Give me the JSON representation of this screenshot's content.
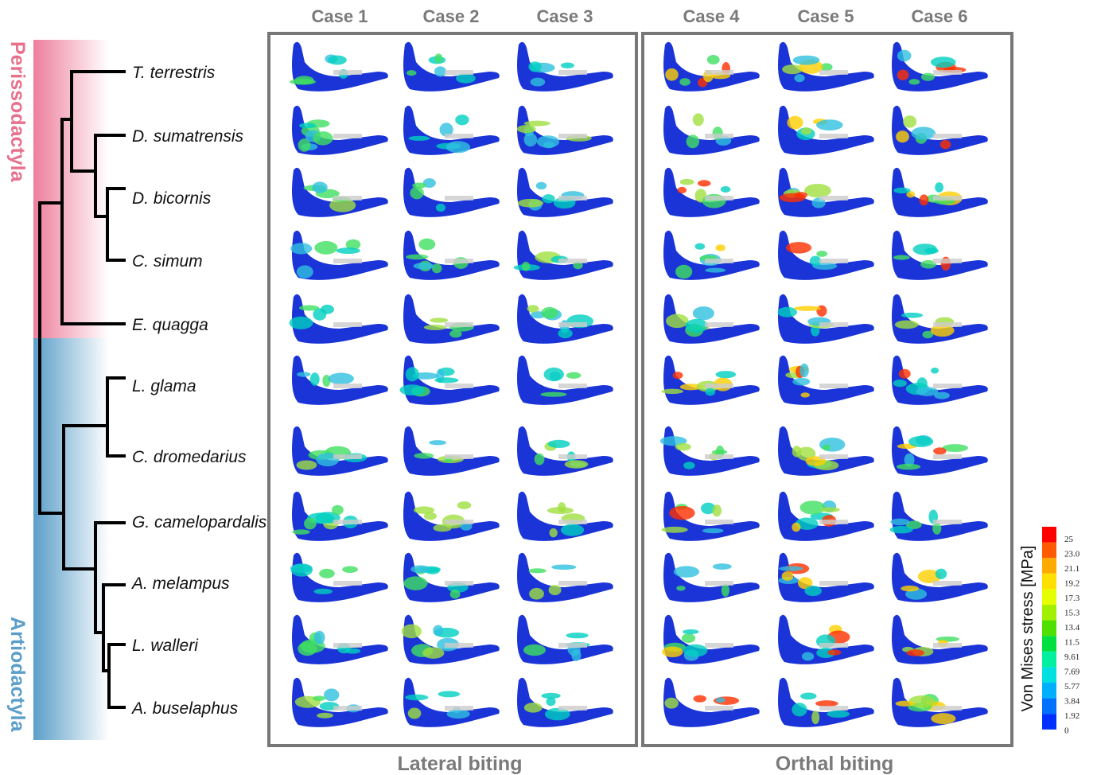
{
  "header": {
    "cases": [
      "Case 1",
      "Case 2",
      "Case 3",
      "Case 4",
      "Case 5",
      "Case 6"
    ]
  },
  "clades": [
    "Perissodactyla",
    "Artiodactyla"
  ],
  "species": [
    "T. terrestris",
    "D. sumatrensis",
    "D. bicornis",
    "C. simum",
    "E. quagga",
    "L. glama",
    "C. dromedarius",
    "G. camelopardalis",
    "A. melampus",
    "L. walleri",
    "A. buselaphus"
  ],
  "groups": [
    "Lateral biting",
    "Orthal biting"
  ],
  "colorbar": {
    "title": "Von Mises stress [MPa]",
    "labels": [
      "25",
      "23.0",
      "21.1",
      "19.2",
      "17.3",
      "15.3",
      "13.4",
      "11.5",
      "9.61",
      "7.69",
      "5.77",
      "3.84",
      "1.92",
      "0"
    ]
  }
}
